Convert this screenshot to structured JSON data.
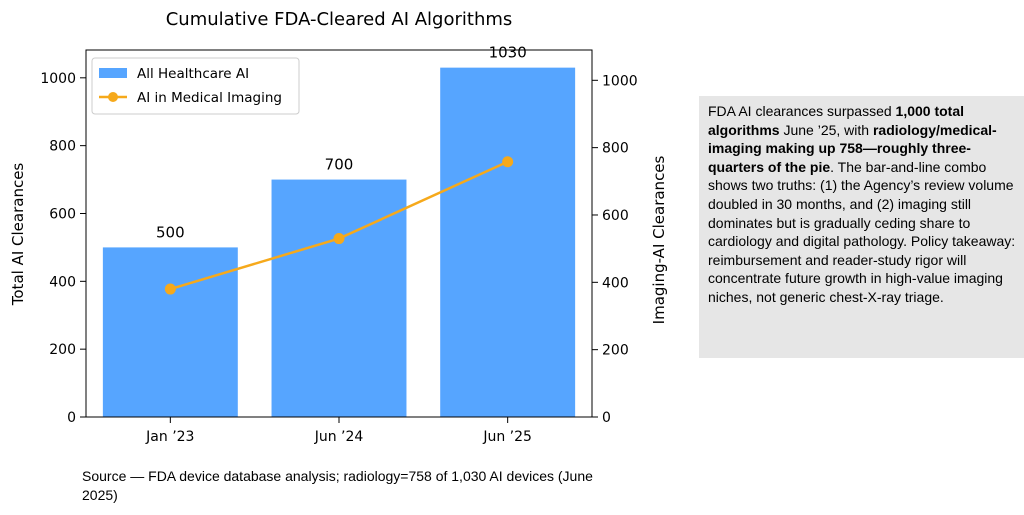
{
  "chart_data": {
    "type": "bar",
    "title": "Cumulative FDA-Cleared AI Algorithms",
    "categories": [
      "Jan ’23",
      "Jun ’24",
      "Jun ’25"
    ],
    "series": [
      {
        "name": "All Healthcare AI",
        "type": "bar",
        "axis": "left",
        "color": "#56a5ff",
        "values": [
          500,
          700,
          1030
        ]
      },
      {
        "name": "AI in Medical Imaging",
        "type": "line",
        "axis": "right",
        "color": "#f6a91b",
        "values": [
          380,
          530,
          758
        ]
      }
    ],
    "data_labels": [
      "500",
      "700",
      "1030"
    ],
    "ylabel": "Total AI Clearances",
    "y2label": "Imaging-AI Clearances",
    "ylim": [
      0,
      1082
    ],
    "y2lim": [
      0,
      1090
    ],
    "yticks": [
      0,
      200,
      400,
      600,
      800,
      1000
    ],
    "y2ticks": [
      0,
      200,
      400,
      600,
      800,
      1000
    ],
    "grid": false,
    "legend": "top-left"
  },
  "source_text": "Source — FDA device database analysis; radiology=758 of 1,030 AI devices (June 2025)",
  "note": {
    "p1": "FDA AI clearances surpassed ",
    "b1": "1,000 total algorithms",
    "p2": " June ’25, with ",
    "b2": "radiology/medical-imaging making up 758—roughly three-quarters of the pie",
    "p3": ". The bar-and-line combo shows two truths: (1) the Agency’s review volume doubled in 30 months, and (2) imaging still dominates but is gradually ceding share to cardiology and digital pathology. Policy takeaway: reimbursement and reader-study rigor will concentrate future growth in high-value imaging niches, not generic chest-X-ray triage."
  }
}
